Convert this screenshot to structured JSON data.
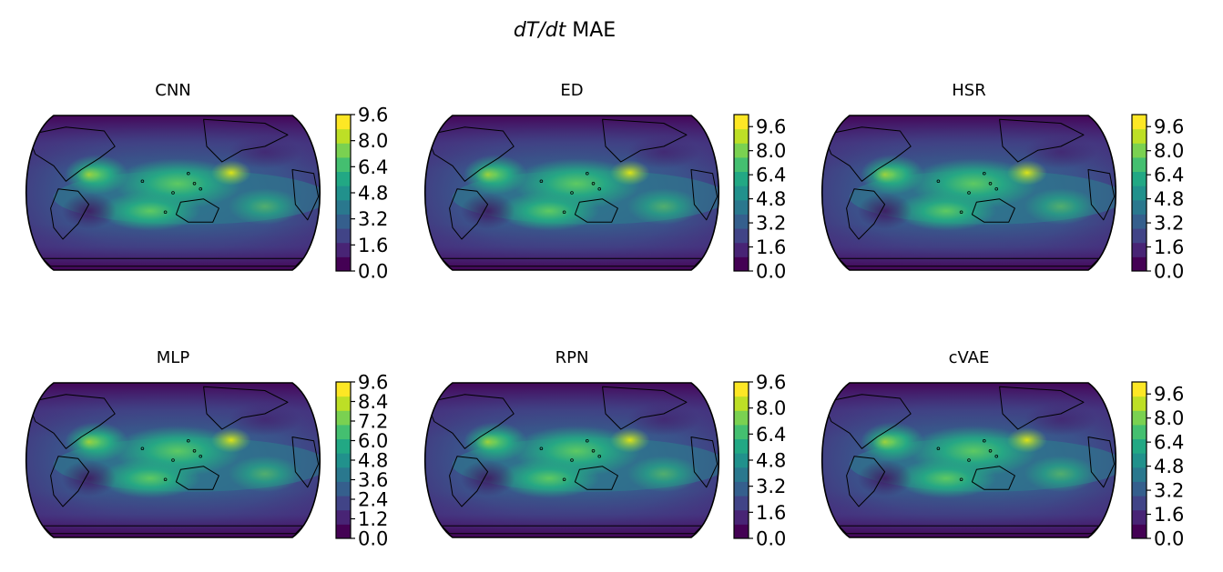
{
  "figure": {
    "title_italic": "dT/dt",
    "title_rest": " MAE"
  },
  "colors": {
    "viridis": [
      "#440154",
      "#482475",
      "#414487",
      "#355f8d",
      "#2a788e",
      "#21918c",
      "#22a884",
      "#44bf70",
      "#7ad151",
      "#bddf26",
      "#fde725"
    ],
    "coastline": "#000000",
    "frame": "#000000"
  },
  "chart_data": [
    {
      "type": "heatmap",
      "title": "CNN",
      "colorbar": {
        "min": 0.0,
        "max": 9.6,
        "ticks": [
          0.0,
          1.6,
          3.2,
          4.8,
          6.4,
          8.0,
          9.6
        ],
        "tick_labels": [
          "0.0",
          "1.6",
          "3.2",
          "4.8",
          "6.4",
          "8.0",
          "9.6"
        ]
      }
    },
    {
      "type": "heatmap",
      "title": "ED",
      "colorbar": {
        "min": 0.0,
        "max": 10.4,
        "ticks": [
          0.0,
          1.6,
          3.2,
          4.8,
          6.4,
          8.0,
          9.6
        ],
        "tick_labels": [
          "0.0",
          "1.6",
          "3.2",
          "4.8",
          "6.4",
          "8.0",
          "9.6"
        ]
      }
    },
    {
      "type": "heatmap",
      "title": "HSR",
      "colorbar": {
        "min": 0.0,
        "max": 10.4,
        "ticks": [
          0.0,
          1.6,
          3.2,
          4.8,
          6.4,
          8.0,
          9.6
        ],
        "tick_labels": [
          "0.0",
          "1.6",
          "3.2",
          "4.8",
          "6.4",
          "8.0",
          "9.6"
        ]
      }
    },
    {
      "type": "heatmap",
      "title": "MLP",
      "colorbar": {
        "min": 0.0,
        "max": 9.6,
        "ticks": [
          0.0,
          1.2,
          2.4,
          3.6,
          4.8,
          6.0,
          7.2,
          8.4,
          9.6
        ],
        "tick_labels": [
          "0.0",
          "1.2",
          "2.4",
          "3.6",
          "4.8",
          "6.0",
          "7.2",
          "8.4",
          "9.6"
        ]
      }
    },
    {
      "type": "heatmap",
      "title": "RPN",
      "colorbar": {
        "min": 0.0,
        "max": 9.6,
        "ticks": [
          0.0,
          1.6,
          3.2,
          4.8,
          6.4,
          8.0,
          9.6
        ],
        "tick_labels": [
          "0.0",
          "1.6",
          "3.2",
          "4.8",
          "6.4",
          "8.0",
          "9.6"
        ]
      }
    },
    {
      "type": "heatmap",
      "title": "cVAE",
      "colorbar": {
        "min": 0.0,
        "max": 10.4,
        "ticks": [
          0.0,
          1.6,
          3.2,
          4.8,
          6.4,
          8.0,
          9.6
        ],
        "tick_labels": [
          "0.0",
          "1.6",
          "3.2",
          "4.8",
          "6.4",
          "8.0",
          "9.6"
        ]
      }
    }
  ]
}
